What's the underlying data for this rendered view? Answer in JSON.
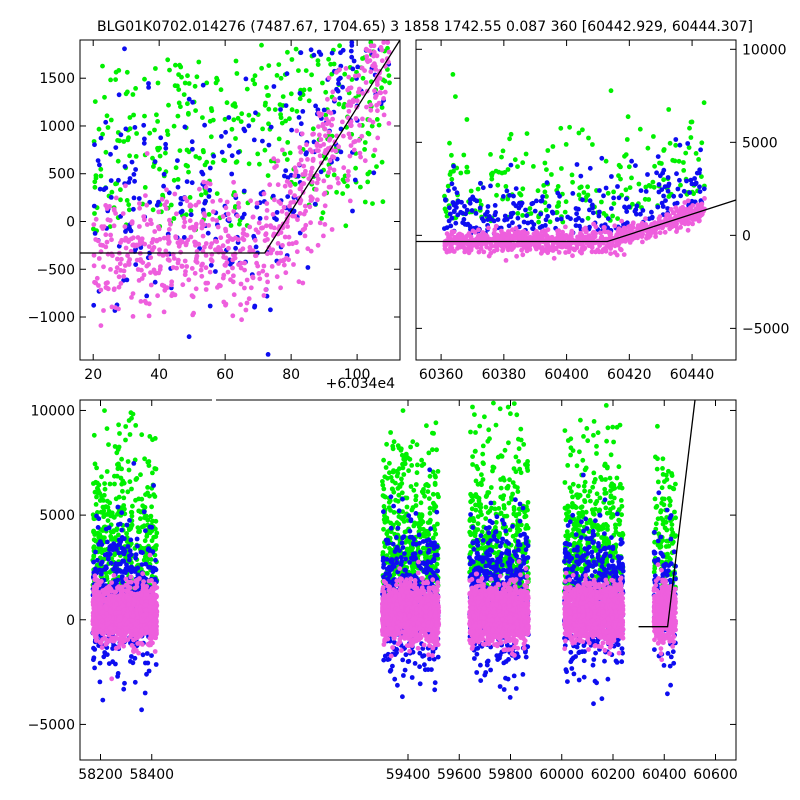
{
  "title": "BLG01K0702.014276 (7487.67, 1704.65)    3 1858 1742.55 0.087 360 [60442.929, 60444.307]",
  "colors": {
    "blue": "#0d0df0",
    "green": "#00f000",
    "magenta": "#ee5fdd",
    "model": "#000000"
  },
  "chart_data": [
    {
      "id": "top-left",
      "type": "scatter",
      "title": "",
      "xlabel": "",
      "ylabel": "",
      "x_offset_label": "+6.034e4",
      "xlim": [
        16,
        113
      ],
      "ylim": [
        -1450,
        1900
      ],
      "xticks": [
        20,
        40,
        60,
        80,
        100
      ],
      "yticks": [
        -1000,
        -500,
        0,
        500,
        1000,
        1500
      ],
      "y_axis_side": "left",
      "grid": false,
      "series": [
        {
          "color": "blue",
          "points_desc": "sparse, mostly 40-110, rising trend"
        },
        {
          "color": "green",
          "points_desc": "sparse, scattered"
        },
        {
          "color": "magenta",
          "points_desc": "dense, baseline ~-300 then rising after 72"
        }
      ],
      "model_line": {
        "x": [
          16,
          72,
          113
        ],
        "y": [
          -330,
          -330,
          1900
        ]
      }
    },
    {
      "id": "top-right",
      "type": "scatter",
      "title": "",
      "xlabel": "",
      "ylabel": "",
      "xlim": [
        60352,
        60454
      ],
      "ylim": [
        -6700,
        10500
      ],
      "xticks": [
        60360,
        60380,
        60400,
        60420,
        60440
      ],
      "yticks": [
        -5000,
        0,
        5000,
        10000
      ],
      "y_axis_side": "right",
      "grid": false,
      "model_line": {
        "x": [
          60352,
          60413,
          60454
        ],
        "y": [
          -330,
          -330,
          1900
        ]
      }
    },
    {
      "id": "bottom",
      "type": "scatter",
      "title": "",
      "xlabel": "",
      "ylabel": "",
      "xlim": [
        58120,
        60680
      ],
      "ylim": [
        -6700,
        10500
      ],
      "xticks": [
        58200,
        58400,
        59400,
        59600,
        59800,
        60000,
        60200,
        60400,
        60600
      ],
      "yticks": [
        -5000,
        0,
        5000,
        10000
      ],
      "y_axis_side": "left",
      "grid": false,
      "seasons": [
        {
          "x": [
            58170,
            58420
          ]
        },
        {
          "x": [
            59300,
            59520
          ]
        },
        {
          "x": [
            59640,
            59870
          ]
        },
        {
          "x": [
            60010,
            60240
          ]
        },
        {
          "x": [
            60360,
            60445
          ]
        }
      ],
      "model_line": {
        "x": [
          60300,
          60413,
          60520
        ],
        "y": [
          -330,
          -330,
          10500
        ]
      }
    }
  ]
}
